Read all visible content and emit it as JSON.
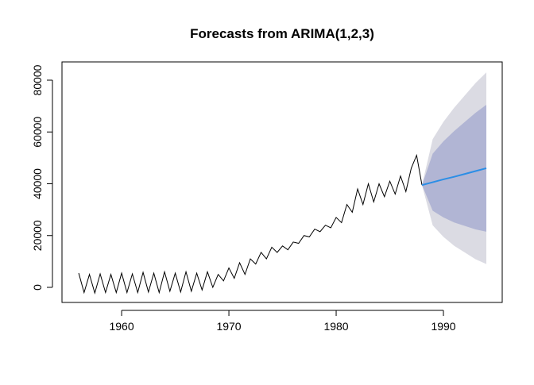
{
  "chart_data": {
    "type": "line",
    "title": "Forecasts from ARIMA(1,2,3)",
    "x": [
      1956.0,
      1956.5,
      1957.0,
      1957.5,
      1958.0,
      1958.5,
      1959.0,
      1959.5,
      1960.0,
      1960.5,
      1961.0,
      1961.5,
      1962.0,
      1962.5,
      1963.0,
      1963.5,
      1964.0,
      1964.5,
      1965.0,
      1965.5,
      1966.0,
      1966.5,
      1967.0,
      1967.5,
      1968.0,
      1968.5,
      1969.0,
      1969.5,
      1970.0,
      1970.5,
      1971.0,
      1971.5,
      1972.0,
      1972.5,
      1973.0,
      1973.5,
      1974.0,
      1974.5,
      1975.0,
      1975.5,
      1976.0,
      1976.5,
      1977.0,
      1977.5,
      1978.0,
      1978.5,
      1979.0,
      1979.5,
      1980.0,
      1980.5,
      1981.0,
      1981.5,
      1982.0,
      1982.5,
      1983.0,
      1983.5,
      1984.0,
      1984.5,
      1985.0,
      1985.5,
      1986.0,
      1986.5,
      1987.0,
      1987.5,
      1988.0
    ],
    "values": [
      5500,
      -2000,
      5000,
      -2200,
      5200,
      -2000,
      5000,
      -2000,
      5500,
      -2000,
      5200,
      -2000,
      5800,
      -1800,
      5500,
      -2000,
      6000,
      -1500,
      5500,
      -1800,
      6000,
      -1500,
      5500,
      -1000,
      6000,
      0,
      5000,
      2500,
      7500,
      3500,
      9500,
      5000,
      11000,
      9000,
      13500,
      11000,
      15500,
      13500,
      16000,
      14500,
      17500,
      17000,
      20000,
      19500,
      22500,
      21500,
      24000,
      23000,
      27000,
      25000,
      32000,
      29000,
      38000,
      32000,
      40000,
      33000,
      40000,
      35000,
      41000,
      36000,
      43000,
      37000,
      46000,
      51000,
      39500
    ],
    "color": "#000000",
    "forecast": {
      "x": [
        1988,
        1989,
        1990,
        1991,
        1992,
        1993,
        1994
      ],
      "mean": [
        39500,
        40600,
        41700,
        42700,
        43800,
        44900,
        46000
      ],
      "lo80": [
        39500,
        29575,
        27000,
        25060,
        23710,
        22360,
        21500
      ],
      "hi80": [
        39500,
        51625,
        56400,
        60340,
        63890,
        67440,
        70500
      ],
      "lo95": [
        39500,
        23950,
        19500,
        16060,
        13460,
        10860,
        9000
      ],
      "hi95": [
        39500,
        57250,
        63900,
        69340,
        74140,
        78940,
        83000
      ],
      "mean_color": "#2b8ee6",
      "band80_color": "#b1b5d4",
      "band95_color": "#dbdbe3"
    },
    "xlim": [
      1954.44,
      1995.48
    ],
    "ylim": [
      -5824,
      87050
    ],
    "xticks": [
      1960,
      1970,
      1980,
      1990
    ],
    "yticks": [
      0,
      20000,
      40000,
      60000,
      80000
    ]
  }
}
